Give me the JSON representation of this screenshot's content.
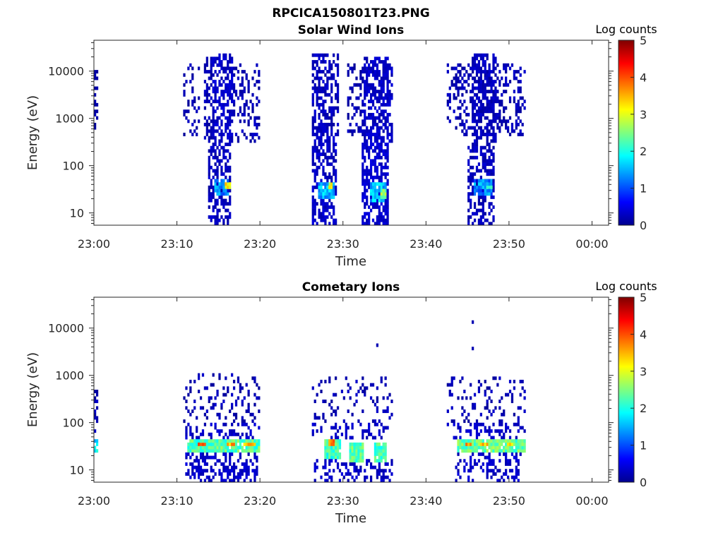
{
  "figure_title": "RPCICA150801T23.PNG",
  "colorbar_colors": [
    "#00008f",
    "#0000ff",
    "#007fff",
    "#00ffff",
    "#7fff7f",
    "#ffff00",
    "#ff7f00",
    "#ff0000",
    "#7f0000"
  ],
  "chart_data": [
    {
      "type": "heatmap",
      "title": "Solar Wind Ions",
      "xlabel": "Time",
      "ylabel": "Energy (eV)",
      "x_tick_labels": [
        "23:00",
        "23:10",
        "23:20",
        "23:30",
        "23:40",
        "23:50",
        "00:00"
      ],
      "x_ticks_minutes": [
        0,
        10,
        20,
        30,
        40,
        50,
        60
      ],
      "xlim_minutes": [
        0,
        62
      ],
      "y_scale": "log",
      "ylim": [
        5.5,
        45000
      ],
      "y_tick_labels": [
        "10",
        "100",
        "1000",
        "10000"
      ],
      "y_ticks": [
        10,
        100,
        1000,
        10000
      ],
      "colorbar": {
        "label": "Log counts",
        "range": [
          0,
          5
        ],
        "tick_labels": [
          "0",
          "1",
          "2",
          "3",
          "4",
          "5"
        ],
        "colormap": "jet"
      },
      "grid": false,
      "log_counts_regions": [
        {
          "start": 0.0,
          "end": 0.6,
          "emin": 600,
          "emax": 12000,
          "prob": 0.55,
          "level": 0.2
        },
        {
          "start": 10.8,
          "end": 12.8,
          "emin": 400,
          "emax": 15000,
          "prob": 0.22,
          "level": 0.2
        },
        {
          "start": 13.3,
          "end": 14.2,
          "emin": 300,
          "emax": 20000,
          "prob": 0.55,
          "level": 0.2
        },
        {
          "start": 14.2,
          "end": 16.8,
          "emin": 300,
          "emax": 25000,
          "prob": 0.6,
          "level": 0.3
        },
        {
          "start": 16.8,
          "end": 20.0,
          "emin": 300,
          "emax": 15000,
          "prob": 0.28,
          "level": 0.2
        },
        {
          "start": 13.8,
          "end": 16.6,
          "emin": 5.5,
          "emax": 300,
          "prob": 0.55,
          "level": 0.25
        },
        {
          "start": 14.5,
          "end": 16.3,
          "emin": 25,
          "emax": 50,
          "prob": 0.9,
          "level": 1.3
        },
        {
          "start": 15.8,
          "end": 16.4,
          "emin": 30,
          "emax": 45,
          "prob": 1.0,
          "level": 3.1
        },
        {
          "start": 26.3,
          "end": 29.5,
          "emin": 400,
          "emax": 25000,
          "prob": 0.6,
          "level": 0.25
        },
        {
          "start": 26.3,
          "end": 29.2,
          "emin": 5.5,
          "emax": 400,
          "prob": 0.6,
          "level": 0.3
        },
        {
          "start": 27.0,
          "end": 29.0,
          "emin": 20,
          "emax": 45,
          "prob": 0.95,
          "level": 1.5
        },
        {
          "start": 28.2,
          "end": 28.8,
          "emin": 32,
          "emax": 45,
          "prob": 1.0,
          "level": 3.0
        },
        {
          "start": 30.5,
          "end": 32.5,
          "emin": 400,
          "emax": 15000,
          "prob": 0.4,
          "level": 0.2
        },
        {
          "start": 32.5,
          "end": 36.0,
          "emin": 300,
          "emax": 20000,
          "prob": 0.6,
          "level": 0.3
        },
        {
          "start": 32.3,
          "end": 35.6,
          "emin": 5.5,
          "emax": 300,
          "prob": 0.62,
          "level": 0.35
        },
        {
          "start": 33.2,
          "end": 35.3,
          "emin": 18,
          "emax": 45,
          "prob": 0.95,
          "level": 1.6
        },
        {
          "start": 34.5,
          "end": 35.2,
          "emin": 20,
          "emax": 30,
          "prob": 1.0,
          "level": 2.6
        },
        {
          "start": 42.5,
          "end": 52.0,
          "emin": 400,
          "emax": 15000,
          "prob": 0.35,
          "level": 0.2
        },
        {
          "start": 45.5,
          "end": 48.5,
          "emin": 300,
          "emax": 25000,
          "prob": 0.55,
          "level": 0.25
        },
        {
          "start": 45.0,
          "end": 48.2,
          "emin": 5.5,
          "emax": 300,
          "prob": 0.55,
          "level": 0.25
        },
        {
          "start": 45.8,
          "end": 48.0,
          "emin": 25,
          "emax": 50,
          "prob": 0.9,
          "level": 1.3
        },
        {
          "start": 47.3,
          "end": 47.9,
          "emin": 30,
          "emax": 40,
          "prob": 1.0,
          "level": 2.3
        }
      ]
    },
    {
      "type": "heatmap",
      "title": "Cometary Ions",
      "xlabel": "Time",
      "ylabel": "Energy (eV)",
      "x_tick_labels": [
        "23:00",
        "23:10",
        "23:20",
        "23:30",
        "23:40",
        "23:50",
        "00:00"
      ],
      "x_ticks_minutes": [
        0,
        10,
        20,
        30,
        40,
        50,
        60
      ],
      "xlim_minutes": [
        0,
        62
      ],
      "y_scale": "log",
      "ylim": [
        5.5,
        45000
      ],
      "y_tick_labels": [
        "10",
        "100",
        "1000",
        "10000"
      ],
      "y_ticks": [
        10,
        100,
        1000,
        10000
      ],
      "colorbar": {
        "label": "Log counts",
        "range": [
          0,
          5
        ],
        "tick_labels": [
          "0",
          "1",
          "2",
          "3",
          "4",
          "5"
        ],
        "colormap": "jet"
      },
      "grid": false,
      "log_counts_regions": [
        {
          "start": 0.0,
          "end": 0.6,
          "emin": 60,
          "emax": 500,
          "prob": 0.5,
          "level": 0.2
        },
        {
          "start": 0.0,
          "end": 0.5,
          "emin": 25,
          "emax": 45,
          "prob": 0.9,
          "level": 1.7
        },
        {
          "start": 10.8,
          "end": 20.0,
          "emin": 100,
          "emax": 1200,
          "prob": 0.18,
          "level": 0.2
        },
        {
          "start": 10.8,
          "end": 20.0,
          "emin": 45,
          "emax": 100,
          "prob": 0.35,
          "level": 0.3
        },
        {
          "start": 11.2,
          "end": 20.0,
          "emin": 25,
          "emax": 45,
          "prob": 0.92,
          "level": 2.3
        },
        {
          "start": 12.4,
          "end": 13.4,
          "emin": 30,
          "emax": 40,
          "prob": 1.0,
          "level": 3.7
        },
        {
          "start": 16.0,
          "end": 17.0,
          "emin": 30,
          "emax": 40,
          "prob": 1.0,
          "level": 3.6
        },
        {
          "start": 18.0,
          "end": 19.5,
          "emin": 30,
          "emax": 40,
          "prob": 1.0,
          "level": 3.3
        },
        {
          "start": 11.0,
          "end": 19.8,
          "emin": 5.5,
          "emax": 25,
          "prob": 0.45,
          "level": 0.3
        },
        {
          "start": 26.3,
          "end": 36.0,
          "emin": 100,
          "emax": 1000,
          "prob": 0.16,
          "level": 0.2
        },
        {
          "start": 26.3,
          "end": 36.0,
          "emin": 45,
          "emax": 100,
          "prob": 0.3,
          "level": 0.3
        },
        {
          "start": 27.8,
          "end": 29.8,
          "emin": 18,
          "emax": 45,
          "prob": 0.95,
          "level": 2.2
        },
        {
          "start": 30.8,
          "end": 32.5,
          "emin": 15,
          "emax": 40,
          "prob": 0.95,
          "level": 2.3
        },
        {
          "start": 33.8,
          "end": 35.2,
          "emin": 15,
          "emax": 40,
          "prob": 0.95,
          "level": 2.2
        },
        {
          "start": 28.3,
          "end": 28.9,
          "emin": 32,
          "emax": 42,
          "prob": 1.0,
          "level": 3.6
        },
        {
          "start": 26.3,
          "end": 36.0,
          "emin": 5.5,
          "emax": 18,
          "prob": 0.25,
          "level": 0.3
        },
        {
          "start": 42.5,
          "end": 52.0,
          "emin": 100,
          "emax": 1000,
          "prob": 0.16,
          "level": 0.2
        },
        {
          "start": 42.5,
          "end": 52.0,
          "emin": 45,
          "emax": 100,
          "prob": 0.3,
          "level": 0.3
        },
        {
          "start": 43.8,
          "end": 52.0,
          "emin": 25,
          "emax": 45,
          "prob": 0.92,
          "level": 2.4
        },
        {
          "start": 44.8,
          "end": 45.6,
          "emin": 30,
          "emax": 40,
          "prob": 1.0,
          "level": 3.6
        },
        {
          "start": 46.5,
          "end": 47.5,
          "emin": 30,
          "emax": 40,
          "prob": 1.0,
          "level": 3.3
        },
        {
          "start": 49.8,
          "end": 50.6,
          "emin": 30,
          "emax": 40,
          "prob": 1.0,
          "level": 3.2
        },
        {
          "start": 43.5,
          "end": 51.5,
          "emin": 5.5,
          "emax": 25,
          "prob": 0.35,
          "level": 0.3
        }
      ],
      "isolated_points": [
        {
          "minute": 45.5,
          "energy": 13500,
          "level": 0.2
        },
        {
          "minute": 45.5,
          "energy": 3800,
          "level": 0.2
        },
        {
          "minute": 34.2,
          "energy": 4200,
          "level": 0.2
        },
        {
          "minute": 35.0,
          "energy": 900,
          "level": 0.2
        }
      ]
    }
  ]
}
